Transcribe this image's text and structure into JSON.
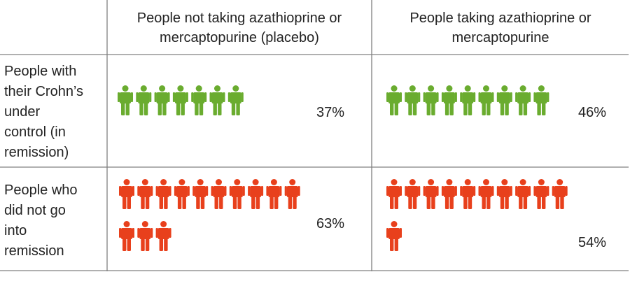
{
  "chart_data": {
    "type": "icon_array",
    "columns": [
      {
        "label_lines": [
          "People not taking azathioprine or",
          "mercaptopurine (placebo)"
        ]
      },
      {
        "label_lines": [
          "People taking azathioprine or",
          "mercaptopurine"
        ]
      }
    ],
    "rows": [
      {
        "label_lines": [
          "People with",
          "their Crohn’s",
          "under",
          "control (in",
          "remission)"
        ],
        "color": "#6aac2f"
      },
      {
        "label_lines": [
          "People who",
          "did not go",
          "into",
          "remission"
        ],
        "color": "#e8401c"
      }
    ],
    "cells": [
      {
        "row": 0,
        "col": 0,
        "icons": 7,
        "percent_label": "37%"
      },
      {
        "row": 0,
        "col": 1,
        "icons": 9,
        "percent_label": "46%"
      },
      {
        "row": 1,
        "col": 0,
        "icons": 13,
        "percent_label": "63%"
      },
      {
        "row": 1,
        "col": 1,
        "icons": 11,
        "percent_label": "54%"
      }
    ],
    "grid_color": "#808080"
  }
}
